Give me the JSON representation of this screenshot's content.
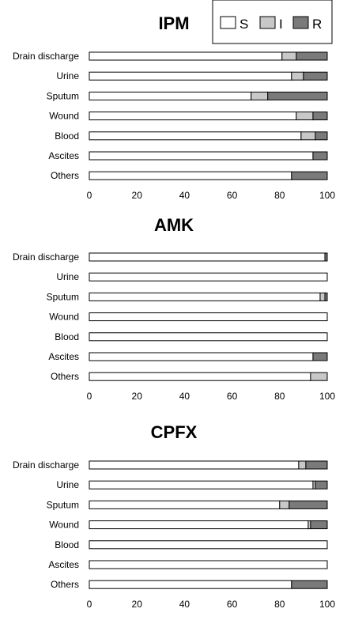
{
  "legend": {
    "items": [
      {
        "label": "S",
        "color": "#ffffff"
      },
      {
        "label": "I",
        "color": "#c8c8c8"
      },
      {
        "label": "R",
        "color": "#7a7a7a"
      }
    ]
  },
  "chart_data": [
    {
      "type": "bar",
      "orientation": "horizontal",
      "stacked": true,
      "title": "IPM",
      "categories": [
        "Drain discharge",
        "Urine",
        "Sputum",
        "Wound",
        "Blood",
        "Ascites",
        "Others"
      ],
      "series": [
        {
          "name": "S",
          "values": [
            81,
            85,
            68,
            87,
            89,
            94,
            85
          ]
        },
        {
          "name": "I",
          "values": [
            6,
            5,
            7,
            7,
            6,
            0,
            0
          ]
        },
        {
          "name": "R",
          "values": [
            13,
            10,
            25,
            6,
            5,
            6,
            15
          ]
        }
      ],
      "xlim": [
        0,
        100
      ],
      "xticks": [
        "0",
        "20",
        "40",
        "60",
        "80",
        "100"
      ]
    },
    {
      "type": "bar",
      "orientation": "horizontal",
      "stacked": true,
      "title": "AMK",
      "categories": [
        "Drain discharge",
        "Urine",
        "Sputum",
        "Wound",
        "Blood",
        "Ascites",
        "Others"
      ],
      "series": [
        {
          "name": "S",
          "values": [
            99,
            100,
            97,
            100,
            100,
            94,
            93
          ]
        },
        {
          "name": "I",
          "values": [
            0,
            0,
            2,
            0,
            0,
            0,
            7
          ]
        },
        {
          "name": "R",
          "values": [
            1,
            0,
            1,
            0,
            0,
            6,
            0
          ]
        }
      ],
      "xlim": [
        0,
        100
      ],
      "xticks": [
        "0",
        "20",
        "40",
        "60",
        "80",
        "100"
      ]
    },
    {
      "type": "bar",
      "orientation": "horizontal",
      "stacked": true,
      "title": "CPFX",
      "categories": [
        "Drain discharge",
        "Urine",
        "Sputum",
        "Wound",
        "Blood",
        "Ascites",
        "Others"
      ],
      "series": [
        {
          "name": "S",
          "values": [
            88,
            94,
            80,
            92,
            100,
            100,
            85
          ]
        },
        {
          "name": "I",
          "values": [
            3,
            1,
            4,
            1,
            0,
            0,
            0
          ]
        },
        {
          "name": "R",
          "values": [
            9,
            5,
            16,
            7,
            0,
            0,
            15
          ]
        }
      ],
      "xlim": [
        0,
        100
      ],
      "xticks": [
        "0",
        "20",
        "40",
        "60",
        "80",
        "100"
      ]
    }
  ]
}
